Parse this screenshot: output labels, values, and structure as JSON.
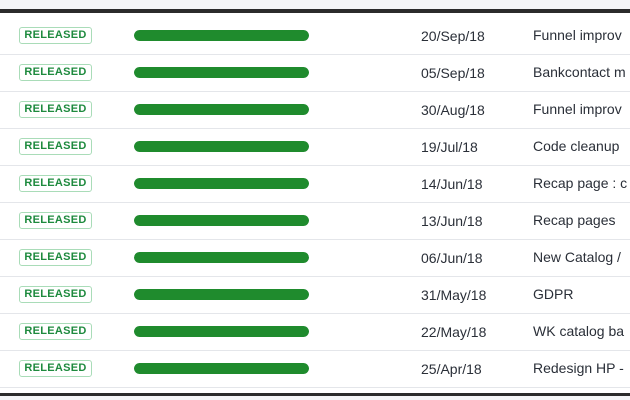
{
  "colors": {
    "released_text": "#1e8a3e",
    "released_border": "#a9dcb8",
    "progress_fill": "#1f8b2d",
    "progress_track": "#dfe1e6"
  },
  "releases": [
    {
      "status": "RELEASED",
      "progress": 1.0,
      "date": "20/Sep/18",
      "description": "Funnel improv"
    },
    {
      "status": "RELEASED",
      "progress": 1.0,
      "date": "05/Sep/18",
      "description": "Bankcontact m"
    },
    {
      "status": "RELEASED",
      "progress": 1.0,
      "date": "30/Aug/18",
      "description": "Funnel improv"
    },
    {
      "status": "RELEASED",
      "progress": 1.0,
      "date": "19/Jul/18",
      "description": "Code cleanup"
    },
    {
      "status": "RELEASED",
      "progress": 1.0,
      "date": "14/Jun/18",
      "description": "Recap page : c"
    },
    {
      "status": "RELEASED",
      "progress": 1.0,
      "date": "13/Jun/18",
      "description": "Recap pages"
    },
    {
      "status": "RELEASED",
      "progress": 1.0,
      "date": "06/Jun/18",
      "description": "New Catalog /"
    },
    {
      "status": "RELEASED",
      "progress": 1.0,
      "date": "31/May/18",
      "description": "GDPR"
    },
    {
      "status": "RELEASED",
      "progress": 1.0,
      "date": "22/May/18",
      "description": "WK catalog ba"
    },
    {
      "status": "RELEASED",
      "progress": 1.0,
      "date": "25/Apr/18",
      "description": "Redesign HP -"
    }
  ]
}
